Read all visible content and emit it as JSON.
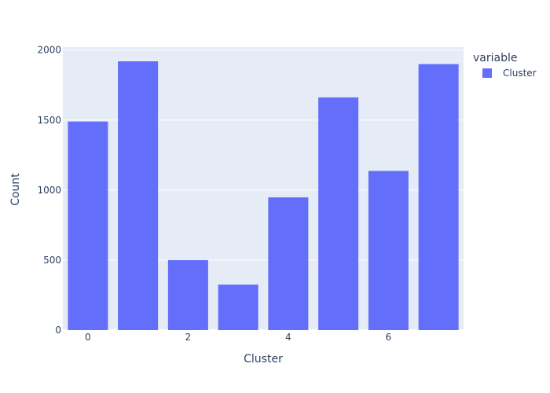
{
  "chart_data": {
    "type": "bar",
    "x": [
      0,
      1,
      2,
      3,
      4,
      5,
      6,
      7
    ],
    "series": [
      {
        "name": "Cluster",
        "values": [
          1490,
          1920,
          500,
          325,
          948,
          1662,
          1137,
          1900
        ]
      }
    ],
    "xlabel": "Cluster",
    "ylabel": "Count",
    "xlim": [
      -0.5,
      7.5
    ],
    "ylim": [
      0,
      2021
    ],
    "x_ticks": [
      0,
      2,
      4,
      6
    ],
    "y_ticks": [
      0,
      500,
      1000,
      1500,
      2000
    ],
    "legend_title": "variable",
    "legend_position": "top-right",
    "grid": true,
    "colors": {
      "bar": "#636efa",
      "plot_bg": "#e5ecf6",
      "grid": "#ffffff",
      "text": "#2a3f5f"
    }
  }
}
